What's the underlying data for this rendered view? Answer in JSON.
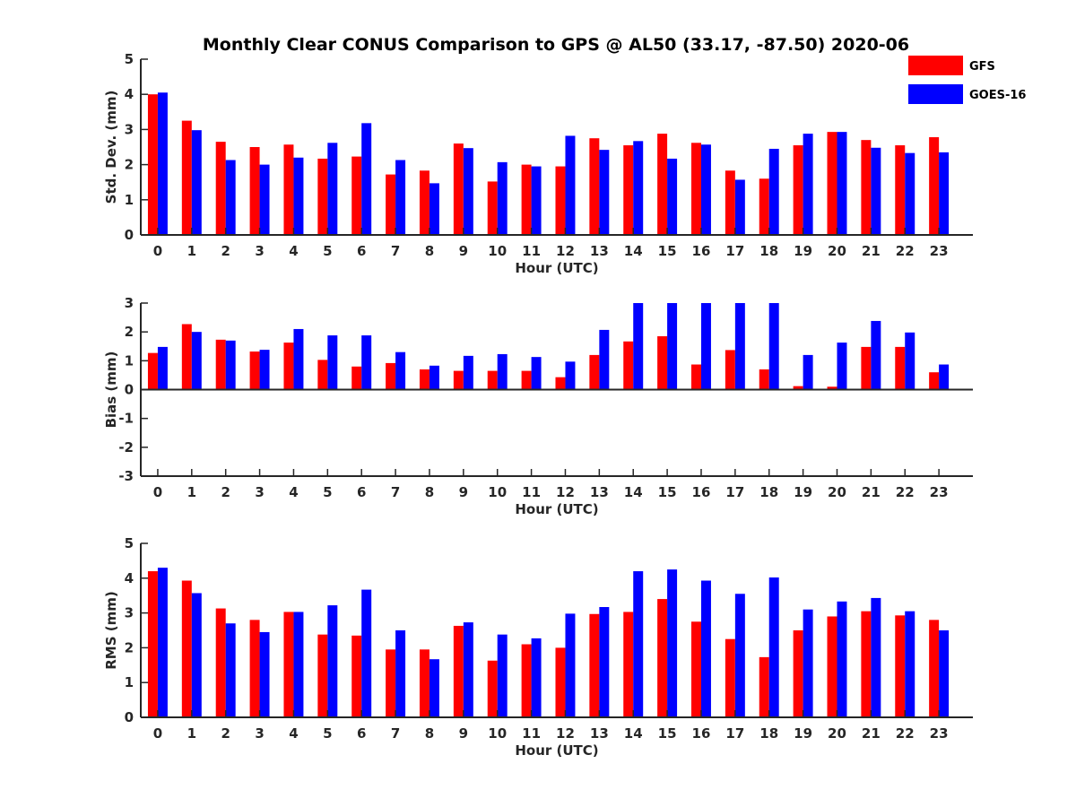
{
  "title": "Monthly Clear CONUS Comparison to GPS @ AL50 (33.17, -87.50) 2020-06",
  "colors": {
    "GFS": "#ff0000",
    "GOES-16": "#0000ff",
    "axis": "#262626"
  },
  "legend": {
    "placement": "top-right",
    "entries": [
      "GFS",
      "GOES-16"
    ]
  },
  "chart_data": [
    {
      "type": "bar",
      "title": "Monthly Clear CONUS Comparison to GPS @ AL50 (33.17, -87.50) 2020-06",
      "xlabel": "Hour (UTC)",
      "ylabel": "Std. Dev. (mm)",
      "ylim": [
        0,
        5
      ],
      "yticks": [
        0,
        1,
        2,
        3,
        4,
        5
      ],
      "grid": false,
      "categories": [
        "0",
        "1",
        "2",
        "3",
        "4",
        "5",
        "6",
        "7",
        "8",
        "9",
        "10",
        "11",
        "12",
        "13",
        "14",
        "15",
        "16",
        "17",
        "18",
        "19",
        "20",
        "21",
        "22",
        "23"
      ],
      "series": [
        {
          "name": "GFS",
          "values": [
            4.0,
            3.25,
            2.65,
            2.5,
            2.57,
            2.17,
            2.23,
            1.72,
            1.83,
            2.6,
            1.52,
            2.0,
            1.95,
            2.75,
            2.55,
            2.88,
            2.62,
            1.83,
            1.6,
            2.55,
            2.93,
            2.7,
            2.55,
            2.78
          ]
        },
        {
          "name": "GOES-16",
          "values": [
            4.05,
            2.98,
            2.13,
            2.0,
            2.2,
            2.62,
            3.18,
            2.13,
            1.47,
            2.47,
            2.07,
            1.95,
            2.82,
            2.42,
            2.67,
            2.17,
            2.57,
            1.57,
            2.45,
            2.88,
            2.93,
            2.48,
            2.33,
            2.35
          ]
        }
      ]
    },
    {
      "type": "bar",
      "xlabel": "Hour (UTC)",
      "ylabel": "Bias (mm)",
      "ylim": [
        -3,
        3
      ],
      "yticks": [
        -3,
        -2,
        -1,
        0,
        1,
        2,
        3
      ],
      "grid": false,
      "categories": [
        "0",
        "1",
        "2",
        "3",
        "4",
        "5",
        "6",
        "7",
        "8",
        "9",
        "10",
        "11",
        "12",
        "13",
        "14",
        "15",
        "16",
        "17",
        "18",
        "19",
        "20",
        "21",
        "22",
        "23"
      ],
      "series": [
        {
          "name": "GFS",
          "values": [
            1.27,
            2.27,
            1.73,
            1.32,
            1.63,
            1.03,
            0.8,
            0.92,
            0.7,
            0.65,
            0.65,
            0.65,
            0.43,
            1.2,
            1.67,
            1.85,
            0.87,
            1.37,
            0.7,
            0.12,
            0.1,
            1.48,
            1.48,
            0.6
          ]
        },
        {
          "name": "GOES-16",
          "values": [
            1.48,
            2.0,
            1.7,
            1.38,
            2.1,
            1.88,
            1.88,
            1.3,
            0.83,
            1.17,
            1.23,
            1.13,
            0.97,
            2.07,
            3.0,
            3.0,
            3.0,
            3.0,
            3.0,
            1.2,
            1.63,
            2.38,
            1.98,
            0.87
          ]
        }
      ]
    },
    {
      "type": "bar",
      "xlabel": "Hour (UTC)",
      "ylabel": "RMS (mm)",
      "ylim": [
        0,
        5
      ],
      "yticks": [
        0,
        1,
        2,
        3,
        4,
        5
      ],
      "grid": false,
      "categories": [
        "0",
        "1",
        "2",
        "3",
        "4",
        "5",
        "6",
        "7",
        "8",
        "9",
        "10",
        "11",
        "12",
        "13",
        "14",
        "15",
        "16",
        "17",
        "18",
        "19",
        "20",
        "21",
        "22",
        "23"
      ],
      "series": [
        {
          "name": "GFS",
          "values": [
            4.2,
            3.93,
            3.13,
            2.8,
            3.03,
            2.38,
            2.35,
            1.95,
            1.95,
            2.63,
            1.63,
            2.1,
            2.0,
            2.97,
            3.03,
            3.4,
            2.75,
            2.25,
            1.73,
            2.5,
            2.9,
            3.05,
            2.93,
            2.8
          ]
        },
        {
          "name": "GOES-16",
          "values": [
            4.3,
            3.57,
            2.7,
            2.45,
            3.03,
            3.22,
            3.67,
            2.5,
            1.67,
            2.73,
            2.38,
            2.27,
            2.98,
            3.17,
            4.2,
            4.25,
            3.93,
            3.55,
            4.02,
            3.1,
            3.33,
            3.43,
            3.05,
            2.5
          ]
        }
      ]
    }
  ]
}
